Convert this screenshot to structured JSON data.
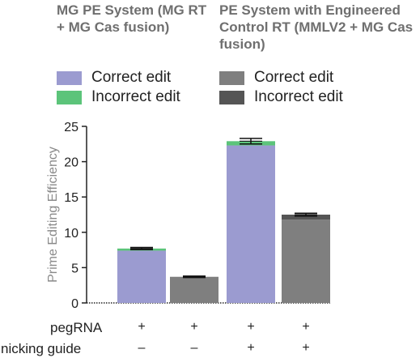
{
  "groups": [
    {
      "title": "MG PE System (MG RT + MG Cas fusion)",
      "legend": [
        {
          "label": "Correct edit",
          "color": "#9b9bd0"
        },
        {
          "label": "Incorrect edit",
          "color": "#5cc47a"
        }
      ]
    },
    {
      "title": "PE System with Engineered Control RT (MMLV2 + MG Cas fusion)",
      "legend": [
        {
          "label": "Correct edit",
          "color": "#7f7f7f"
        },
        {
          "label": "Incorrect edit",
          "color": "#555555"
        }
      ]
    }
  ],
  "chart_data": {
    "type": "bar",
    "stacked": true,
    "title": "",
    "ylabel": "Prime Editing Efficiency",
    "ylim": [
      0,
      25
    ],
    "yticks": [
      0,
      5,
      10,
      15,
      20,
      25
    ],
    "categories": [
      "1",
      "2",
      "3",
      "4"
    ],
    "conditions": [
      {
        "name": "pegRNA",
        "values": [
          "+",
          "+",
          "+",
          "+"
        ]
      },
      {
        "name": "nicking guide",
        "values": [
          "–",
          "–",
          "+",
          "+"
        ]
      }
    ],
    "bars": [
      {
        "system": "MG PE System",
        "correct": 7.4,
        "incorrect": 0.3,
        "error": 0.15,
        "colors": [
          "#9b9bd0",
          "#5cc47a"
        ]
      },
      {
        "system": "PE System with Engineered Control RT",
        "correct": 3.7,
        "incorrect": 0.0,
        "error": 0.1,
        "colors": [
          "#7f7f7f",
          "#555555"
        ]
      },
      {
        "system": "MG PE System",
        "correct": 22.3,
        "incorrect": 0.6,
        "error": 0.4,
        "colors": [
          "#9b9bd0",
          "#5cc47a"
        ]
      },
      {
        "system": "PE System with Engineered Control RT",
        "correct": 11.8,
        "incorrect": 0.7,
        "error": 0.2,
        "colors": [
          "#7f7f7f",
          "#555555"
        ]
      }
    ],
    "grid": false,
    "legend_position": "top"
  }
}
